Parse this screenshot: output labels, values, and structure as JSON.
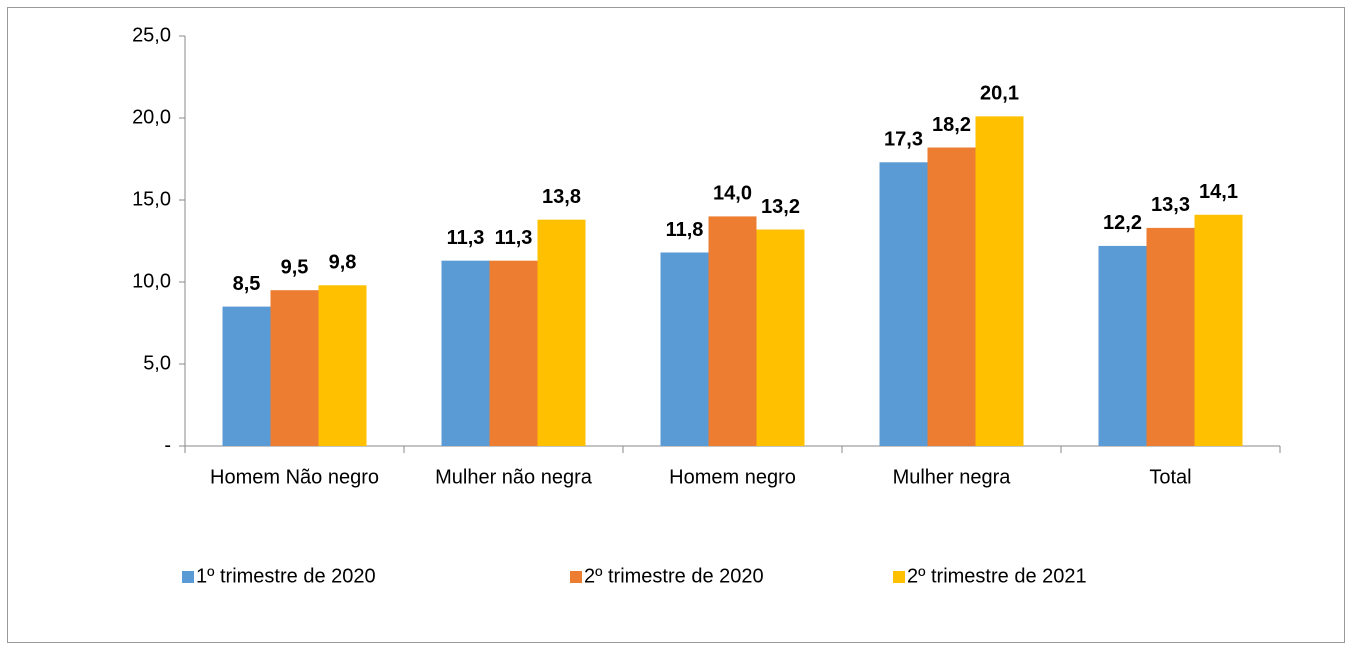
{
  "chart_data": {
    "type": "bar",
    "categories": [
      "Homem Não negro",
      "Mulher não negra",
      "Homem negro",
      "Mulher negra",
      "Total"
    ],
    "series": [
      {
        "name": "1º trimestre de 2020",
        "color": "#5b9bd5",
        "values": [
          8.5,
          11.3,
          11.8,
          17.3,
          12.2
        ],
        "value_labels": [
          "8,5",
          "11,3",
          "11,8",
          "17,3",
          "12,2"
        ]
      },
      {
        "name": "2º trimestre de 2020",
        "color": "#ed7d31",
        "values": [
          9.5,
          11.3,
          14.0,
          18.2,
          13.3
        ],
        "value_labels": [
          "9,5",
          "11,3",
          "14,0",
          "18,2",
          "13,3"
        ]
      },
      {
        "name": "2º trimestre de 2021",
        "color": "#ffc000",
        "values": [
          9.8,
          13.8,
          13.2,
          20.1,
          14.1
        ],
        "value_labels": [
          "9,8",
          "13,8",
          "13,2",
          "20,1",
          "14,1"
        ]
      }
    ],
    "ylim": [
      0,
      25
    ],
    "yticks": [
      {
        "value": 0,
        "label": "-"
      },
      {
        "value": 5,
        "label": "5,0"
      },
      {
        "value": 10,
        "label": "10,0"
      },
      {
        "value": 15,
        "label": "15,0"
      },
      {
        "value": 20,
        "label": "20,0"
      },
      {
        "value": 25,
        "label": "25,0"
      }
    ],
    "legend": "bottom"
  }
}
